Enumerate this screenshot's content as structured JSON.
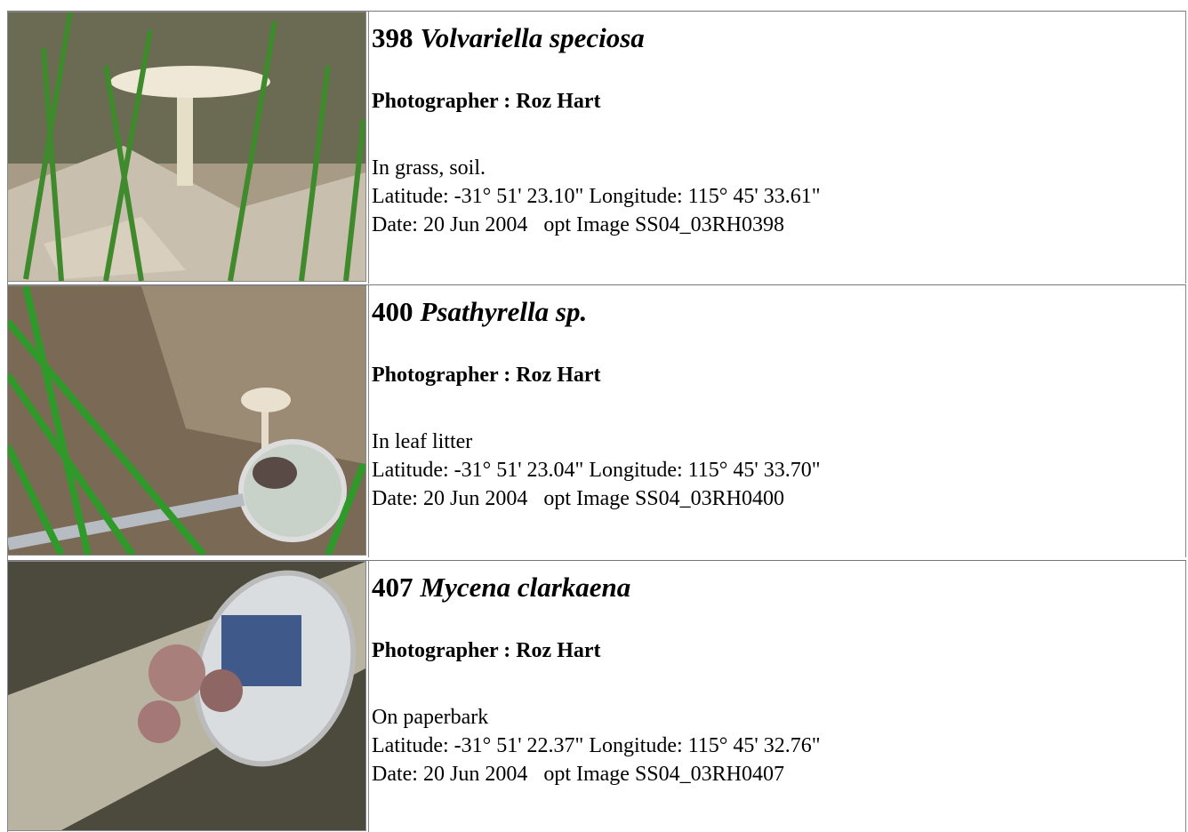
{
  "rows": [
    {
      "number": "398",
      "name": "Volvariella speciosa",
      "photographer": "Photographer : Roz Hart",
      "habitat": "In grass, soil.",
      "location": "Latitude: -31° 51' 23.10\" Longitude: 115° 45' 33.61\"",
      "date": "Date: 20 Jun 2004   opt Image SS04_03RH0398"
    },
    {
      "number": "400",
      "name": "Psathyrella sp.",
      "photographer": "Photographer : Roz Hart",
      "habitat": "In leaf litter",
      "location": "Latitude: -31° 51' 23.04\" Longitude: 115° 45' 33.70\"",
      "date": "Date: 20 Jun 2004   opt Image SS04_03RH0400"
    },
    {
      "number": "407",
      "name": "Mycena clarkaena",
      "photographer": "Photographer : Roz Hart",
      "habitat": "On paperbark",
      "location": "Latitude: -31° 51' 22.37\" Longitude: 115° 45' 32.76\"",
      "date": "Date: 20 Jun 2004   opt Image SS04_03RH0407"
    }
  ]
}
